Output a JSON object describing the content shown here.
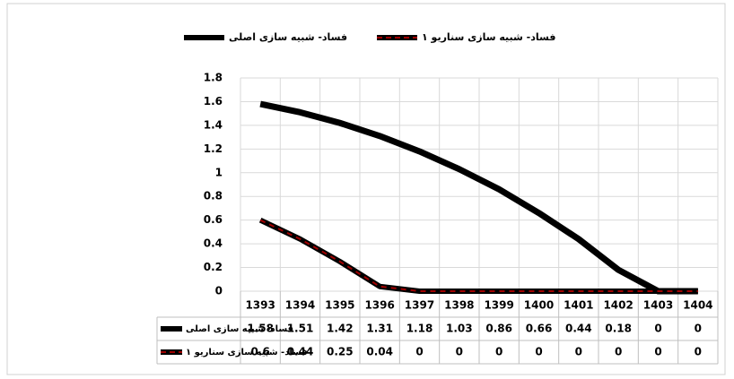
{
  "chart_data": {
    "type": "line",
    "categories": [
      "1393",
      "1394",
      "1395",
      "1396",
      "1397",
      "1398",
      "1399",
      "1400",
      "1401",
      "1402",
      "1403",
      "1404"
    ],
    "series": [
      {
        "name": "فساد- شبیه سازی اصلی",
        "color": "#000000",
        "values": [
          1.58,
          1.51,
          1.42,
          1.31,
          1.18,
          1.03,
          0.86,
          0.66,
          0.44,
          0.18,
          0,
          0
        ]
      },
      {
        "name": "فساد- شبیه سازی سناریو ۱",
        "color": "#a00000",
        "values": [
          0.6,
          0.44,
          0.25,
          0.04,
          0,
          0,
          0,
          0,
          0,
          0,
          0,
          0
        ]
      }
    ],
    "ylim": [
      0,
      1.8
    ],
    "yticks": [
      0,
      0.2,
      0.4,
      0.6,
      0.8,
      1,
      1.2,
      1.4,
      1.6,
      1.8
    ],
    "grid": true,
    "legend": "top",
    "data_table": true
  }
}
